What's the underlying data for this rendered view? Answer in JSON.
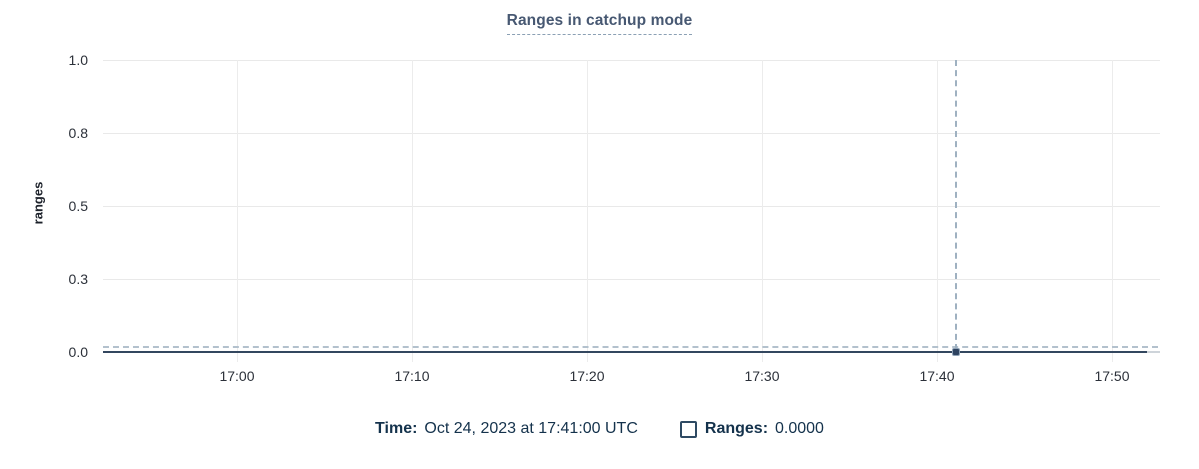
{
  "title": "Ranges in catchup mode",
  "chart_data": {
    "type": "line",
    "title": "Ranges in catchup mode",
    "xlabel": "",
    "ylabel": "ranges",
    "x_tick_labels": [
      "17:00",
      "17:10",
      "17:20",
      "17:30",
      "17:40",
      "17:50"
    ],
    "y_tick_labels": [
      "1.0",
      "0.8",
      "0.5",
      "0.3",
      "0.0"
    ],
    "y_tick_values": [
      1.0,
      0.75,
      0.5,
      0.25,
      0.0
    ],
    "ylim": [
      0,
      1.0
    ],
    "x_domain": [
      "16:53",
      "17:53"
    ],
    "grid": true,
    "legend_position": "bottom",
    "series": [
      {
        "name": "Ranges",
        "style": "solid",
        "constant_value": 0,
        "x_start": "16:53",
        "x_end": "17:52"
      }
    ],
    "zero_guideline": {
      "style": "dashed",
      "value": 0
    },
    "hover": {
      "time": "17:41",
      "time_minutes_after_1700": 41,
      "value": 0.0
    }
  },
  "legend": {
    "time_label": "Time:",
    "time_value": "Oct 24, 2023 at 17:41:00 UTC",
    "series_label": "Ranges:",
    "series_value": "0.0000",
    "checkbox_checked": false
  },
  "colors": {
    "title": "#475872",
    "legend_text": "#14324c",
    "series_line": "#33475f",
    "crosshair": "#9fb1c1",
    "grid": "#ececec",
    "tick_text": "#2b3039"
  }
}
